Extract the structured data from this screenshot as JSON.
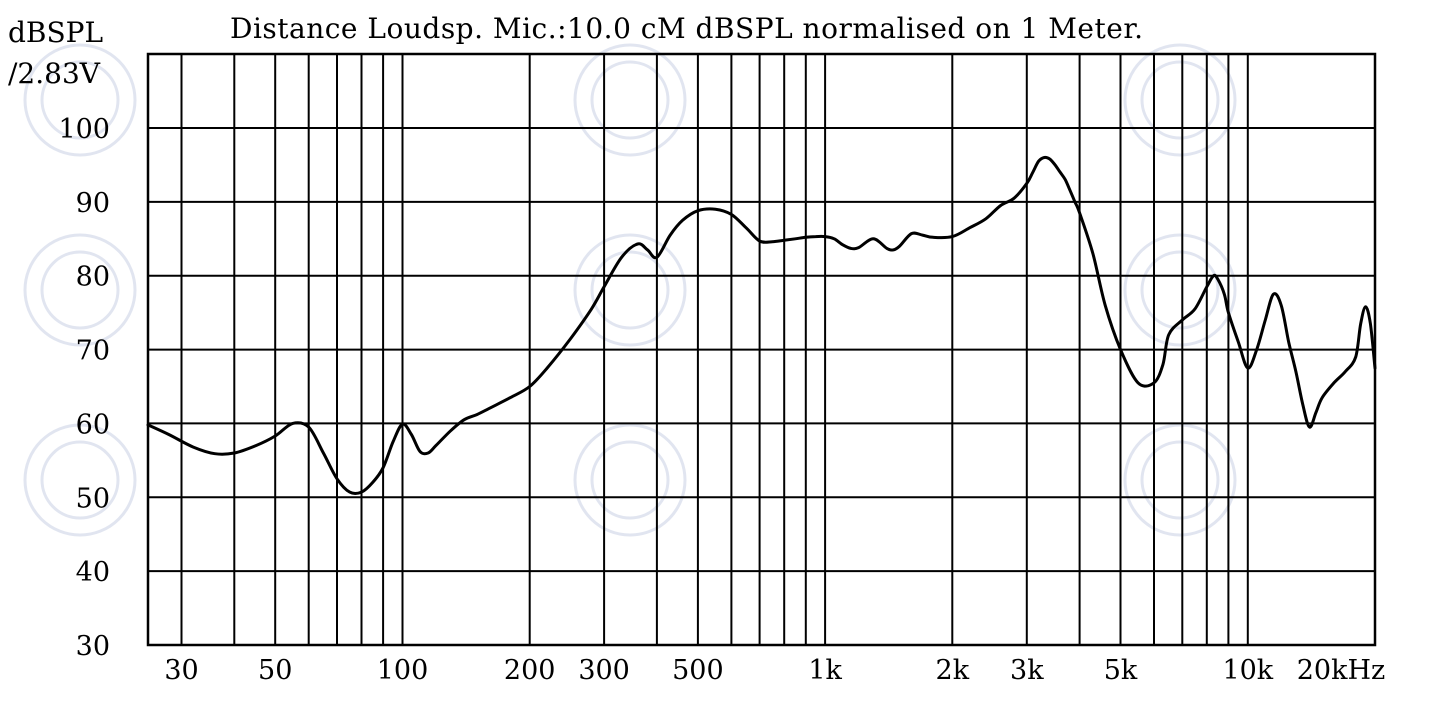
{
  "chart_data": {
    "type": "line",
    "title": "Distance Loudsp. Mic.:10.0 cM dBSPL normalised on 1 Meter.",
    "ylabel": [
      "dBSPL",
      "/2.83V"
    ],
    "xscale": "log",
    "xlim": [
      25,
      20000
    ],
    "ylim": [
      30,
      100
    ],
    "grid": true,
    "yticks": [
      100,
      90,
      80,
      70,
      60,
      50,
      40,
      30
    ],
    "xtick_labels": [
      {
        "f": 30,
        "label": "30"
      },
      {
        "f": 50,
        "label": "50"
      },
      {
        "f": 100,
        "label": "100"
      },
      {
        "f": 200,
        "label": "200"
      },
      {
        "f": 300,
        "label": "300"
      },
      {
        "f": 500,
        "label": "500"
      },
      {
        "f": 1000,
        "label": "1k"
      },
      {
        "f": 2000,
        "label": "2k"
      },
      {
        "f": 3000,
        "label": "3k"
      },
      {
        "f": 5000,
        "label": "5k"
      },
      {
        "f": 10000,
        "label": "10k"
      },
      {
        "f": 20000,
        "label": "20kHz"
      }
    ],
    "grid_freqs": [
      30,
      40,
      50,
      60,
      70,
      80,
      90,
      100,
      200,
      300,
      400,
      500,
      600,
      700,
      800,
      900,
      1000,
      2000,
      3000,
      4000,
      5000,
      6000,
      7000,
      8000,
      9000,
      10000,
      20000
    ],
    "series": [
      {
        "x": [
          25,
          28,
          32,
          36,
          40,
          45,
          50,
          55,
          60,
          65,
          70,
          75,
          80,
          85,
          90,
          95,
          100,
          105,
          110,
          115,
          120,
          130,
          140,
          150,
          160,
          180,
          200,
          220,
          250,
          280,
          300,
          330,
          360,
          380,
          400,
          430,
          460,
          500,
          550,
          600,
          650,
          700,
          750,
          800,
          850,
          900,
          950,
          1000,
          1050,
          1100,
          1150,
          1200,
          1300,
          1400,
          1450,
          1500,
          1600,
          1700,
          1800,
          2000,
          2200,
          2400,
          2600,
          2800,
          3000,
          3100,
          3200,
          3300,
          3400,
          3500,
          3600,
          3700,
          3800,
          3900,
          4000,
          4300,
          4600,
          5000,
          5500,
          6000,
          6300,
          6500,
          7000,
          7500,
          8000,
          8300,
          8500,
          8800,
          9000,
          9500,
          10000,
          10500,
          11000,
          11500,
          12000,
          12500,
          13000,
          13500,
          14000,
          14500,
          15000,
          16000,
          17000,
          18000,
          18500,
          19000,
          19500,
          20000
        ],
        "y": [
          59.8,
          58.5,
          56.8,
          55.9,
          56.0,
          57.0,
          58.3,
          60.0,
          59.5,
          56.0,
          52.5,
          50.7,
          50.7,
          52.0,
          54.0,
          57.5,
          59.9,
          58.5,
          56.2,
          56.0,
          57.0,
          59.0,
          60.5,
          61.2,
          62.0,
          63.5,
          65.0,
          67.5,
          71.5,
          75.5,
          78.5,
          82.5,
          84.3,
          83.5,
          82.5,
          85.5,
          87.5,
          88.8,
          89.0,
          88.3,
          86.5,
          84.7,
          84.6,
          84.8,
          85.0,
          85.2,
          85.3,
          85.3,
          85.0,
          84.2,
          83.7,
          83.8,
          85.0,
          83.7,
          83.5,
          84.0,
          85.7,
          85.5,
          85.2,
          85.3,
          86.5,
          87.7,
          89.5,
          90.5,
          92.5,
          94.0,
          95.5,
          96.0,
          95.8,
          95.0,
          94.0,
          93.0,
          91.5,
          90.0,
          88.5,
          83.0,
          76.0,
          70.0,
          65.5,
          65.5,
          68.0,
          72.0,
          74.0,
          75.5,
          78.5,
          80.0,
          79.5,
          77.5,
          75.0,
          71.0,
          67.5,
          70.0,
          74.0,
          77.5,
          76.0,
          71.0,
          67.0,
          62.5,
          59.5,
          61.5,
          63.5,
          65.5,
          67.0,
          69.0,
          73.5,
          75.8,
          73.5,
          67.5
        ]
      }
    ]
  }
}
